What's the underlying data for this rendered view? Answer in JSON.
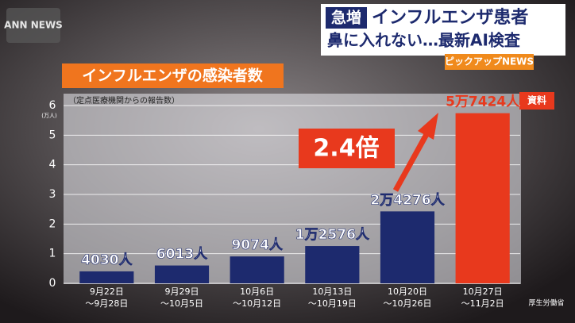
{
  "header": {
    "logo": "ANN NEWS",
    "tag": "急増",
    "headline": "インフルエンザ患者",
    "subheadline": "鼻に入れない…最新AI検査",
    "corner": "ピックアップNEWS"
  },
  "chart_data": {
    "type": "bar",
    "title": "インフルエンザの感染者数",
    "subtitle": "（定点医療機関からの報告数）",
    "y_unit": "(万人)",
    "categories": [
      [
        "9月22日",
        "～9月28日"
      ],
      [
        "9月29日",
        "～10月5日"
      ],
      [
        "10月6日",
        "～10月12日"
      ],
      [
        "10月13日",
        "～10月19日"
      ],
      [
        "10月20日",
        "～10月26日"
      ],
      [
        "10月27日",
        "～11月2日"
      ]
    ],
    "values": [
      0.403,
      0.6013,
      0.9074,
      1.2576,
      2.4276,
      5.7424
    ],
    "value_labels": [
      "4030人",
      "6013人",
      "9074人",
      "1万2576人",
      "2万4276人",
      "5万7424人"
    ],
    "colors": [
      "#1d2a6e",
      "#1d2a6e",
      "#1d2a6e",
      "#1d2a6e",
      "#1d2a6e",
      "#e8391d"
    ],
    "ylim": [
      0,
      6
    ],
    "yticks": [
      0,
      1,
      2,
      3,
      4,
      5,
      6
    ],
    "grid": true,
    "annotation": "2.4倍",
    "source_tag": "資料",
    "source": "厚生労働省"
  }
}
